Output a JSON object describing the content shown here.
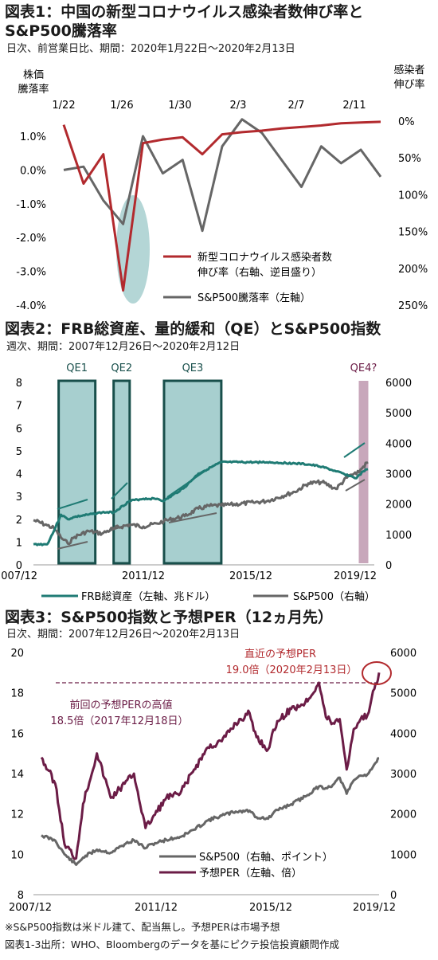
{
  "charts": [
    {
      "title_line1": "図表1：中国の新型コロナウイルス感染者数伸び率と",
      "title_line2": "S&P500騰落率",
      "subtitle": "日次、前営業日比、期間：2020年1月22日～2020年2月13日",
      "left_axis_label": [
        "株価",
        "騰落率"
      ],
      "right_axis_label": [
        "感染者",
        "伸び率"
      ],
      "x_ticks": [
        "1/22",
        "1/26",
        "1/30",
        "2/3",
        "2/7",
        "2/11"
      ],
      "left_ticks": [
        "1.0%",
        "0.0%",
        "-1.0%",
        "-2.0%",
        "-3.0%",
        "-4.0%"
      ],
      "right_ticks": [
        "0%",
        "50%",
        "100%",
        "150%",
        "200%",
        "250%"
      ],
      "legend": [
        {
          "label": [
            "新型コロナウイルス感染者数",
            "伸び率（右軸、逆目盛り）"
          ],
          "color": "#b22a2e"
        },
        {
          "label": [
            "S&P500騰落率（左軸）"
          ],
          "color": "#666666"
        }
      ]
    },
    {
      "title": "図表2：FRB総資産、量的緩和（QE）とS&P500指数",
      "subtitle": "週次、期間：2007年12月26日～2020年2月12日",
      "left_ticks": [
        "8",
        "7",
        "6",
        "5",
        "4",
        "3",
        "2",
        "1",
        "0"
      ],
      "right_ticks": [
        "6000",
        "5000",
        "4000",
        "3000",
        "2000",
        "1000",
        "0"
      ],
      "x_ticks": [
        "2007/12",
        "2011/12",
        "2015/12",
        "2019/12"
      ],
      "qe_labels": [
        "QE1",
        "QE2",
        "QE3",
        "QE4?"
      ],
      "legend": [
        {
          "label": "FRB総資産（左軸、兆ドル）",
          "color": "#1f7b74"
        },
        {
          "label": "S&P500（右軸）",
          "color": "#666666"
        }
      ]
    },
    {
      "title": "図表3：S&P500指数と予想PER（12ヵ月先）",
      "subtitle": "日次、期間：2007年12月26日～2020年2月13日",
      "left_ticks": [
        "20",
        "18",
        "16",
        "14",
        "12",
        "10",
        "8"
      ],
      "right_ticks": [
        "6000",
        "5000",
        "4000",
        "3000",
        "2000",
        "1000",
        "0"
      ],
      "x_ticks": [
        "2007/12",
        "2011/12",
        "2015/12",
        "2019/12"
      ],
      "annotation_recent": [
        "直近の予想PER",
        "19.0倍（2020年2月13日）"
      ],
      "annotation_prev": [
        "前回の予想PERの高値",
        "18.5倍（2017年12月18日）"
      ],
      "legend": [
        {
          "label": "S&P500（右軸、ポイント）",
          "color": "#666666"
        },
        {
          "label": "予想PER（左軸、倍）",
          "color": "#6b1c46"
        }
      ]
    }
  ],
  "footnotes": [
    "※S&P500指数は米ドル建て、配当無し。予想PERは市場予想",
    "図表1-3出所：WHO、Bloombergのデータを基にピクテ投信投資顧問作成"
  ],
  "chart_data": [
    {
      "type": "line",
      "x": [
        "1/22",
        "1/23",
        "1/24",
        "1/27",
        "1/28",
        "1/29",
        "1/30",
        "1/31",
        "2/3",
        "2/4",
        "2/5",
        "2/6",
        "2/7",
        "2/10",
        "2/11",
        "2/12",
        "2/13"
      ],
      "series": [
        {
          "name": "新型コロナウイルス感染者数伸び率（右軸、逆目盛り）",
          "axis": "right",
          "values": [
            5,
            85,
            45,
            230,
            30,
            25,
            22,
            45,
            18,
            15,
            13,
            10,
            8,
            6,
            3,
            2,
            1
          ]
        },
        {
          "name": "S&P500騰落率（左軸）",
          "axis": "left",
          "values": [
            0.0,
            0.1,
            -0.9,
            -1.6,
            1.0,
            -0.1,
            0.3,
            -1.8,
            0.7,
            1.5,
            1.1,
            0.3,
            -0.5,
            0.7,
            0.2,
            0.6,
            -0.2
          ]
        }
      ],
      "ylim_left": [
        -4.0,
        1.5
      ],
      "ylim_right_inverted": [
        0,
        250
      ]
    },
    {
      "type": "line",
      "x": [
        "2007/12",
        "2008/06",
        "2008/09",
        "2008/12",
        "2009/03",
        "2009/06",
        "2009/12",
        "2010/06",
        "2010/11",
        "2011/06",
        "2011/12",
        "2012/06",
        "2012/09",
        "2013/06",
        "2013/12",
        "2014/06",
        "2014/10",
        "2015/12",
        "2016/06",
        "2017/06",
        "2017/12",
        "2018/06",
        "2018/12",
        "2019/06",
        "2019/09",
        "2019/12",
        "2020/02"
      ],
      "series": [
        {
          "name": "FRB総資産（左軸、兆ドル）",
          "axis": "left",
          "values": [
            0.9,
            0.9,
            1.5,
            2.2,
            2.0,
            2.1,
            2.2,
            2.3,
            2.3,
            2.8,
            2.9,
            2.9,
            2.8,
            3.4,
            4.0,
            4.3,
            4.5,
            4.5,
            4.5,
            4.45,
            4.4,
            4.3,
            4.1,
            3.9,
            3.8,
            4.1,
            4.2
          ]
        },
        {
          "name": "S&P500（右軸）",
          "axis": "right",
          "values": [
            1470,
            1300,
            1200,
            900,
            700,
            920,
            1110,
            1030,
            1200,
            1320,
            1260,
            1360,
            1440,
            1600,
            1850,
            1950,
            1950,
            2050,
            2100,
            2400,
            2680,
            2720,
            2500,
            2950,
            2980,
            3230,
            3380
          ]
        }
      ],
      "qe_periods": [
        [
          "2008/11",
          "2010/03"
        ],
        [
          "2010/11",
          "2011/06"
        ],
        [
          "2012/09",
          "2014/10"
        ],
        [
          "2019/10",
          "2020/02"
        ]
      ],
      "ylim_left": [
        0,
        8
      ],
      "ylim_right": [
        0,
        6000
      ]
    },
    {
      "type": "line",
      "x": [
        "2007/12",
        "2008/06",
        "2008/10",
        "2009/03",
        "2009/06",
        "2009/12",
        "2010/06",
        "2010/12",
        "2011/04",
        "2011/09",
        "2011/12",
        "2012/06",
        "2012/12",
        "2013/06",
        "2013/12",
        "2014/06",
        "2014/12",
        "2015/06",
        "2015/09",
        "2016/02",
        "2016/06",
        "2016/12",
        "2017/06",
        "2017/12",
        "2018/03",
        "2018/06",
        "2018/09",
        "2018/12",
        "2019/03",
        "2019/06",
        "2019/09",
        "2019/12",
        "2020/02"
      ],
      "series": [
        {
          "name": "S&P500（右軸、ポイント）",
          "axis": "right",
          "values": [
            1470,
            1340,
            1000,
            740,
            920,
            1115,
            1040,
            1250,
            1350,
            1150,
            1260,
            1360,
            1430,
            1610,
            1840,
            1960,
            2060,
            2080,
            1920,
            1880,
            2100,
            2240,
            2430,
            2680,
            2640,
            2720,
            2900,
            2500,
            2830,
            2950,
            2980,
            3230,
            3380
          ]
        },
        {
          "name": "予想PER（左軸、倍）",
          "axis": "left",
          "values": [
            14.8,
            13.5,
            10.5,
            9.8,
            12.5,
            15.0,
            12.8,
            13.5,
            14.0,
            11.3,
            11.8,
            12.8,
            13.0,
            14.2,
            15.3,
            15.6,
            16.5,
            17.0,
            15.8,
            15.2,
            16.6,
            17.2,
            17.5,
            18.5,
            16.8,
            16.5,
            16.7,
            14.2,
            16.2,
            16.7,
            16.9,
            18.2,
            19.0
          ]
        }
      ],
      "ylim_left": [
        8,
        20
      ],
      "ylim_right": [
        0,
        6000
      ]
    }
  ]
}
